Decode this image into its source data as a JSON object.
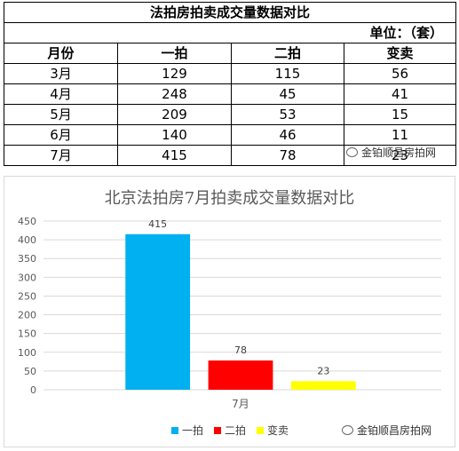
{
  "table": {
    "title": "法拍房拍卖成交量数据对比",
    "unit": "单位：（套）",
    "headers": [
      "月份",
      "一拍",
      "二拍",
      "变卖"
    ],
    "rows": [
      [
        "3月",
        "129",
        "115",
        "56"
      ],
      [
        "4月",
        "248",
        "45",
        "41"
      ],
      [
        "5月",
        "209",
        "53",
        "15"
      ],
      [
        "6月",
        "140",
        "46",
        "11"
      ],
      [
        "7月",
        "415",
        "78",
        "23"
      ]
    ]
  },
  "watermark": "金铂顺昌房拍网",
  "colors": {
    "一拍": "#00b0f0",
    "二拍": "#ff0000",
    "变卖": "#ffff00"
  },
  "chart_data": {
    "type": "bar",
    "title": "北京法拍房7月拍卖成交量数据对比",
    "categories": [
      "7月"
    ],
    "series": [
      {
        "name": "一拍",
        "values": [
          415
        ],
        "color": "#00b0f0"
      },
      {
        "name": "二拍",
        "values": [
          78
        ],
        "color": "#ff0000"
      },
      {
        "name": "变卖",
        "values": [
          23
        ],
        "color": "#ffff00"
      }
    ],
    "yticks": [
      "0",
      "50",
      "100",
      "150",
      "200",
      "250",
      "300",
      "350",
      "400",
      "450"
    ],
    "ylim": [
      0,
      450
    ],
    "grid": true,
    "legend": "bottom"
  }
}
